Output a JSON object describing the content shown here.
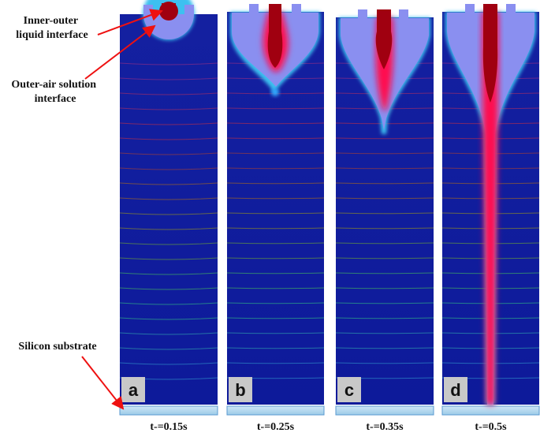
{
  "annotations": [
    {
      "lines": [
        "Inner-outer",
        "liquid interface"
      ]
    },
    {
      "lines": [
        "Outer-air solution",
        "interface"
      ]
    },
    {
      "lines": [
        "Silicon substrate"
      ]
    }
  ],
  "panels": [
    {
      "label": "a",
      "time": "t-=0.15s"
    },
    {
      "label": "b",
      "time": "t-=0.25s"
    },
    {
      "label": "c",
      "time": "t-=0.35s"
    },
    {
      "label": "d",
      "time": "t-=0.5s"
    }
  ]
}
